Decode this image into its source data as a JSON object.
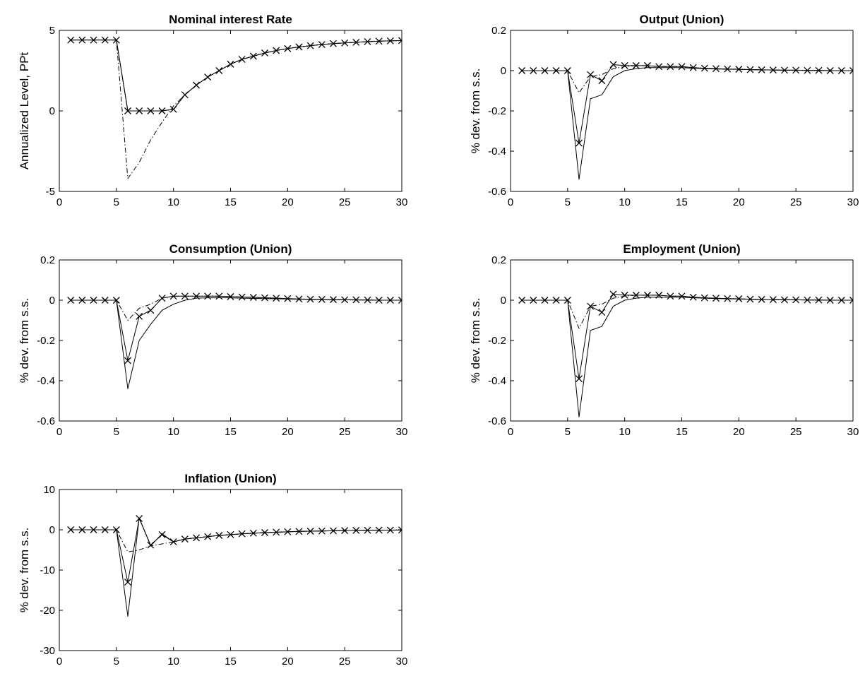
{
  "figure": {
    "background": "#ffffff",
    "line_color": "#000000"
  },
  "chart_data": [
    {
      "type": "line",
      "title": "Nominal interest Rate",
      "xlabel": "",
      "ylabel": "Annualized Level, PPt",
      "xlim": [
        0,
        30
      ],
      "ylim": [
        -5,
        5
      ],
      "xticks": [
        0,
        5,
        10,
        15,
        20,
        25,
        30
      ],
      "yticks": [
        -5,
        0,
        5
      ],
      "grid": false,
      "x": [
        1,
        2,
        3,
        4,
        5,
        6,
        7,
        8,
        9,
        10,
        11,
        12,
        13,
        14,
        15,
        16,
        17,
        18,
        19,
        20,
        21,
        22,
        23,
        24,
        25,
        26,
        27,
        28,
        29,
        30
      ],
      "series": [
        {
          "style": "solid",
          "marker": "none",
          "values": [
            4.4,
            4.4,
            4.4,
            4.4,
            4.4,
            0,
            0,
            0,
            0,
            0.1,
            1.0,
            1.6,
            2.1,
            2.5,
            2.9,
            3.2,
            3.4,
            3.6,
            3.75,
            3.87,
            3.97,
            4.05,
            4.12,
            4.18,
            4.22,
            4.26,
            4.3,
            4.33,
            4.35,
            4.37
          ]
        },
        {
          "style": "solid",
          "marker": "x",
          "values": [
            4.4,
            4.4,
            4.4,
            4.4,
            4.4,
            0,
            0,
            0,
            0,
            0.1,
            1.0,
            1.6,
            2.1,
            2.5,
            2.9,
            3.2,
            3.4,
            3.6,
            3.75,
            3.87,
            3.97,
            4.05,
            4.12,
            4.18,
            4.22,
            4.26,
            4.3,
            4.33,
            4.35,
            4.37
          ]
        },
        {
          "style": "dashdot",
          "marker": "none",
          "values": [
            4.4,
            4.4,
            4.4,
            4.4,
            4.4,
            -4.2,
            -3.2,
            -1.8,
            -0.7,
            0.3,
            1.0,
            1.6,
            2.1,
            2.5,
            2.9,
            3.2,
            3.4,
            3.6,
            3.75,
            3.87,
            3.97,
            4.05,
            4.12,
            4.18,
            4.22,
            4.26,
            4.3,
            4.33,
            4.35,
            4.37
          ]
        }
      ]
    },
    {
      "type": "line",
      "title": "Output (Union)",
      "xlabel": "",
      "ylabel": "% dev. from s.s.",
      "xlim": [
        0,
        30
      ],
      "ylim": [
        -0.6,
        0.2
      ],
      "xticks": [
        0,
        5,
        10,
        15,
        20,
        25,
        30
      ],
      "yticks": [
        -0.6,
        -0.4,
        -0.2,
        0,
        0.2
      ],
      "ytick_labels": [
        "-0.6",
        "-0.4",
        "-0.2",
        "0",
        "0.2"
      ],
      "grid": false,
      "x": [
        1,
        2,
        3,
        4,
        5,
        6,
        7,
        8,
        9,
        10,
        11,
        12,
        13,
        14,
        15,
        16,
        17,
        18,
        19,
        20,
        21,
        22,
        23,
        24,
        25,
        26,
        27,
        28,
        29,
        30
      ],
      "series": [
        {
          "style": "solid",
          "marker": "none",
          "values": [
            0,
            0,
            0,
            0,
            0,
            -0.54,
            -0.14,
            -0.12,
            -0.03,
            0,
            0.01,
            0.015,
            0.015,
            0.015,
            0.015,
            0.012,
            0.01,
            0.008,
            0.007,
            0.006,
            0.005,
            0.004,
            0.003,
            0.002,
            0.002,
            0.001,
            0.001,
            0,
            0,
            0
          ]
        },
        {
          "style": "solid",
          "marker": "x",
          "values": [
            0,
            0,
            0,
            0,
            0,
            -0.36,
            -0.02,
            -0.05,
            0.03,
            0.025,
            0.025,
            0.025,
            0.02,
            0.02,
            0.02,
            0.015,
            0.012,
            0.01,
            0.008,
            0.007,
            0.005,
            0.004,
            0.003,
            0.002,
            0.002,
            0.001,
            0.001,
            0,
            0,
            0
          ]
        },
        {
          "style": "dashdot",
          "marker": "none",
          "values": [
            0,
            0,
            0,
            0,
            0,
            -0.11,
            -0.03,
            -0.02,
            0.01,
            0.02,
            0.025,
            0.025,
            0.02,
            0.02,
            0.02,
            0.015,
            0.012,
            0.01,
            0.008,
            0.007,
            0.005,
            0.004,
            0.003,
            0.002,
            0.002,
            0.001,
            0.001,
            0,
            0,
            0
          ]
        }
      ]
    },
    {
      "type": "line",
      "title": "Consumption (Union)",
      "xlabel": "",
      "ylabel": "% dev. from s.s.",
      "xlim": [
        0,
        30
      ],
      "ylim": [
        -0.6,
        0.2
      ],
      "xticks": [
        0,
        5,
        10,
        15,
        20,
        25,
        30
      ],
      "yticks": [
        -0.6,
        -0.4,
        -0.2,
        0,
        0.2
      ],
      "ytick_labels": [
        "-0.6",
        "-0.4",
        "-0.2",
        "0",
        "0.2"
      ],
      "grid": false,
      "x": [
        1,
        2,
        3,
        4,
        5,
        6,
        7,
        8,
        9,
        10,
        11,
        12,
        13,
        14,
        15,
        16,
        17,
        18,
        19,
        20,
        21,
        22,
        23,
        24,
        25,
        26,
        27,
        28,
        29,
        30
      ],
      "series": [
        {
          "style": "solid",
          "marker": "none",
          "values": [
            0,
            0,
            0,
            0,
            0,
            -0.44,
            -0.2,
            -0.12,
            -0.05,
            -0.02,
            0,
            0.01,
            0.012,
            0.012,
            0.012,
            0.01,
            0.009,
            0.008,
            0.007,
            0.006,
            0.005,
            0.004,
            0.003,
            0.002,
            0.002,
            0.001,
            0.001,
            0,
            0,
            0
          ]
        },
        {
          "style": "solid",
          "marker": "x",
          "values": [
            0,
            0,
            0,
            0,
            0,
            -0.3,
            -0.08,
            -0.05,
            0.01,
            0.02,
            0.02,
            0.02,
            0.02,
            0.02,
            0.018,
            0.016,
            0.014,
            0.012,
            0.01,
            0.008,
            0.006,
            0.005,
            0.004,
            0.003,
            0.002,
            0.002,
            0.001,
            0,
            0,
            0
          ]
        },
        {
          "style": "dashdot",
          "marker": "none",
          "values": [
            0,
            0,
            0,
            0,
            0,
            -0.1,
            -0.04,
            -0.02,
            0.01,
            0.02,
            0.02,
            0.02,
            0.02,
            0.02,
            0.018,
            0.016,
            0.014,
            0.012,
            0.01,
            0.008,
            0.006,
            0.005,
            0.004,
            0.003,
            0.002,
            0.002,
            0.001,
            0,
            0,
            0
          ]
        }
      ]
    },
    {
      "type": "line",
      "title": "Employment (Union)",
      "xlabel": "",
      "ylabel": "% dev. from s.s.",
      "xlim": [
        0,
        30
      ],
      "ylim": [
        -0.6,
        0.2
      ],
      "xticks": [
        0,
        5,
        10,
        15,
        20,
        25,
        30
      ],
      "yticks": [
        -0.6,
        -0.4,
        -0.2,
        0,
        0.2
      ],
      "ytick_labels": [
        "-0.6",
        "-0.4",
        "-0.2",
        "0",
        "0.2"
      ],
      "grid": false,
      "x": [
        1,
        2,
        3,
        4,
        5,
        6,
        7,
        8,
        9,
        10,
        11,
        12,
        13,
        14,
        15,
        16,
        17,
        18,
        19,
        20,
        21,
        22,
        23,
        24,
        25,
        26,
        27,
        28,
        29,
        30
      ],
      "series": [
        {
          "style": "solid",
          "marker": "none",
          "values": [
            0,
            0,
            0,
            0,
            0,
            -0.58,
            -0.15,
            -0.13,
            -0.03,
            0,
            0.01,
            0.015,
            0.015,
            0.015,
            0.015,
            0.012,
            0.01,
            0.008,
            0.007,
            0.006,
            0.005,
            0.004,
            0.003,
            0.002,
            0.002,
            0.001,
            0.001,
            0,
            0,
            0
          ]
        },
        {
          "style": "solid",
          "marker": "x",
          "values": [
            0,
            0,
            0,
            0,
            0,
            -0.39,
            -0.03,
            -0.06,
            0.03,
            0.025,
            0.025,
            0.025,
            0.025,
            0.02,
            0.02,
            0.015,
            0.012,
            0.01,
            0.008,
            0.007,
            0.005,
            0.004,
            0.003,
            0.002,
            0.002,
            0.001,
            0.001,
            0,
            0,
            0
          ]
        },
        {
          "style": "dashdot",
          "marker": "none",
          "values": [
            0,
            0,
            0,
            0,
            0,
            -0.14,
            -0.03,
            -0.02,
            0.01,
            0.02,
            0.025,
            0.025,
            0.025,
            0.02,
            0.02,
            0.015,
            0.012,
            0.01,
            0.008,
            0.007,
            0.005,
            0.004,
            0.003,
            0.002,
            0.002,
            0.001,
            0.001,
            0,
            0,
            0
          ]
        }
      ]
    },
    {
      "type": "line",
      "title": "Inflation (Union)",
      "xlabel": "",
      "ylabel": "% dev. from s.s.",
      "xlim": [
        0,
        30
      ],
      "ylim": [
        -30,
        10
      ],
      "xticks": [
        0,
        5,
        10,
        15,
        20,
        25,
        30
      ],
      "yticks": [
        -30,
        -20,
        -10,
        0,
        10
      ],
      "ytick_labels": [
        "-30",
        "-20",
        "-10",
        "0",
        "10"
      ],
      "grid": false,
      "x": [
        1,
        2,
        3,
        4,
        5,
        6,
        7,
        8,
        9,
        10,
        11,
        12,
        13,
        14,
        15,
        16,
        17,
        18,
        19,
        20,
        21,
        22,
        23,
        24,
        25,
        26,
        27,
        28,
        29,
        30
      ],
      "series": [
        {
          "style": "solid",
          "marker": "none",
          "values": [
            0,
            0,
            0,
            0,
            0,
            -21.5,
            3,
            -4,
            -1,
            -3,
            -2.3,
            -2,
            -1.7,
            -1.4,
            -1.2,
            -1,
            -0.85,
            -0.7,
            -0.6,
            -0.5,
            -0.4,
            -0.35,
            -0.3,
            -0.25,
            -0.2,
            -0.15,
            -0.12,
            -0.1,
            -0.08,
            -0.06
          ]
        },
        {
          "style": "solid",
          "marker": "x",
          "values": [
            0,
            0,
            0,
            0,
            0,
            -13,
            2.8,
            -3.8,
            -1.2,
            -3,
            -2.3,
            -2,
            -1.7,
            -1.4,
            -1.2,
            -1,
            -0.85,
            -0.7,
            -0.6,
            -0.5,
            -0.4,
            -0.35,
            -0.3,
            -0.25,
            -0.2,
            -0.15,
            -0.12,
            -0.1,
            -0.08,
            -0.06
          ]
        },
        {
          "style": "dashdot",
          "marker": "none",
          "values": [
            0,
            0,
            0,
            0,
            0,
            -5.5,
            -5,
            -4,
            -3.5,
            -3,
            -2.3,
            -2,
            -1.7,
            -1.4,
            -1.2,
            -1,
            -0.85,
            -0.7,
            -0.6,
            -0.5,
            -0.4,
            -0.35,
            -0.3,
            -0.25,
            -0.2,
            -0.15,
            -0.12,
            -0.1,
            -0.08,
            -0.06
          ]
        }
      ]
    }
  ]
}
